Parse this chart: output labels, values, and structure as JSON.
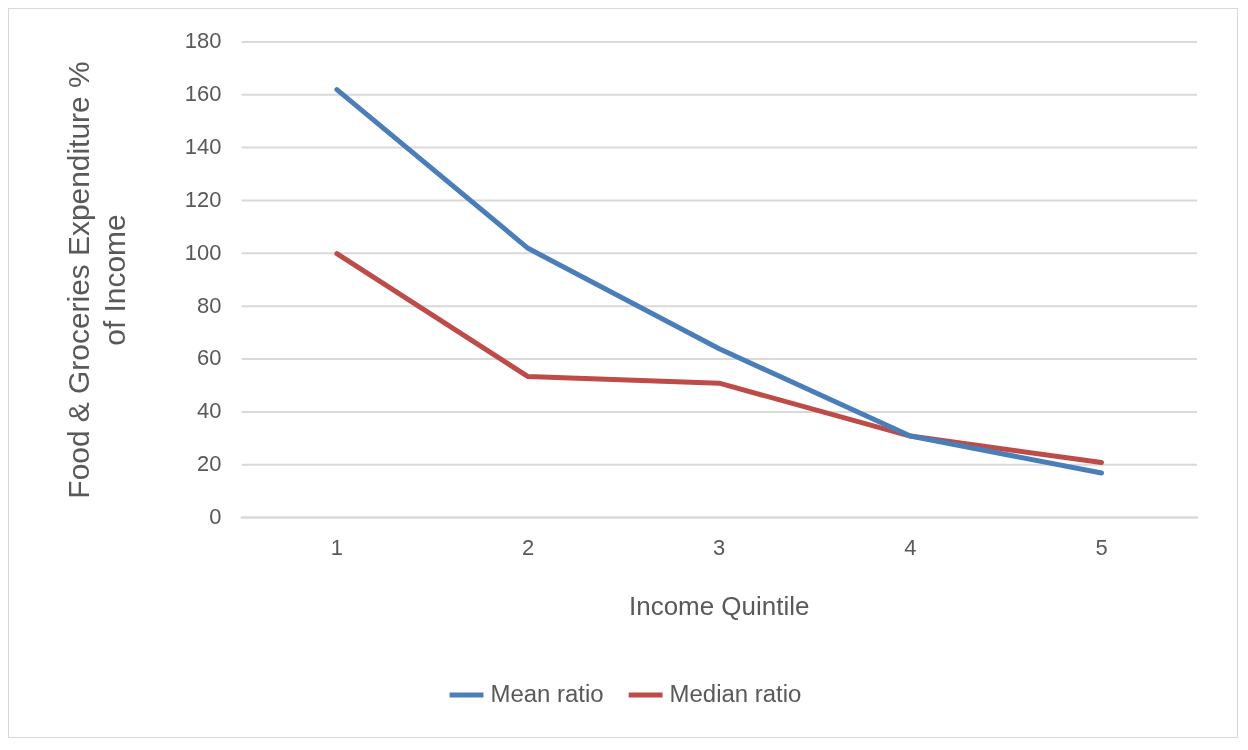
{
  "chart_data": {
    "type": "line",
    "xlabel": "Income Quintile",
    "ylabel": "Food & Groceries Expenditure % of Income",
    "categories": [
      "1",
      "2",
      "3",
      "4",
      "5"
    ],
    "series": [
      {
        "name": "Mean ratio",
        "color": "#4a7ebb",
        "values": [
          162,
          102,
          64,
          31,
          17
        ]
      },
      {
        "name": "Median ratio",
        "color": "#be4b48",
        "values": [
          100,
          53.5,
          51,
          31,
          21
        ]
      }
    ],
    "ylim": [
      0,
      180
    ],
    "yticks": [
      0,
      20,
      40,
      60,
      80,
      100,
      120,
      140,
      160,
      180
    ],
    "grid": "y",
    "legend": "bottom",
    "marker": "none",
    "line_style": "solid"
  }
}
